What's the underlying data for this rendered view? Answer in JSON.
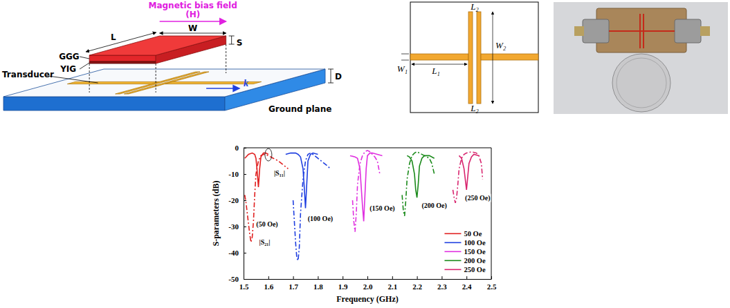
{
  "schematic": {
    "bias_field": "Magnetic bias field",
    "bias_symbol": "(H)",
    "L": "L",
    "W": "W",
    "S": "S",
    "D": "D",
    "ggg": "GGG",
    "yig": "YIG",
    "transducer": "Transducer",
    "k": "k",
    "ground": "Ground plane"
  },
  "layout": {
    "L2_top": "L₂",
    "L2_bottom": "L₂",
    "W2": "W₂",
    "W1": "W₁",
    "L1": "L₁"
  },
  "chart_data": {
    "type": "line",
    "xlabel": "Frequency (GHz)",
    "ylabel": "S-parameters (dB)",
    "xlim": [
      1.5,
      2.5
    ],
    "ylim": [
      -50,
      0
    ],
    "xticks": [
      1.5,
      1.6,
      1.7,
      1.8,
      1.9,
      {
        "value": 2,
        "label": "2.0"
      },
      2.1,
      2.2,
      2.3,
      2.4,
      2.5
    ],
    "yticks": [
      -50,
      -40,
      -30,
      -20,
      -10,
      0
    ],
    "grid": false,
    "legend": "lower right",
    "series": [
      {
        "name": "50 Oe",
        "color": "#e02020",
        "line_style": "solid",
        "x": [
          1.505,
          1.52,
          1.535,
          1.545,
          1.55,
          1.555,
          1.56,
          1.565,
          1.57,
          1.58,
          1.59,
          1.6
        ],
        "values": [
          -4,
          -2.5,
          -2,
          -2.5,
          -4,
          -9,
          -15,
          -8,
          -3.5,
          -2,
          -2,
          -2.5
        ]
      },
      {
        "color": "#e02020",
        "line_style": "dashdot",
        "x": [
          1.505,
          1.51,
          1.515,
          1.52,
          1.525,
          1.53,
          1.535,
          1.54,
          1.545,
          1.55,
          1.56,
          1.57,
          1.58,
          1.6,
          1.62,
          1.64,
          1.66,
          1.68
        ],
        "values": [
          -18,
          -21,
          -25,
          -29,
          -33,
          -36,
          -34,
          -28,
          -18,
          -10,
          -5,
          -3,
          -2.5,
          -3,
          -4,
          -5,
          -6.5,
          -8
        ]
      },
      {
        "name": "100 Oe",
        "color": "#1f3fe0",
        "line_style": "solid",
        "x": [
          1.67,
          1.69,
          1.71,
          1.72,
          1.73,
          1.74,
          1.745,
          1.75,
          1.755,
          1.76,
          1.77,
          1.78,
          1.8
        ],
        "values": [
          -2.5,
          -2,
          -2,
          -2.5,
          -3.5,
          -8,
          -15,
          -23,
          -14,
          -5,
          -2.5,
          -2,
          -2.5
        ]
      },
      {
        "color": "#1f3fe0",
        "line_style": "dashdot",
        "x": [
          1.7,
          1.705,
          1.71,
          1.715,
          1.72,
          1.725,
          1.73,
          1.74,
          1.75,
          1.76,
          1.77,
          1.78,
          1.8,
          1.82,
          1.84,
          1.85
        ],
        "values": [
          -20,
          -28,
          -36,
          -42,
          -43,
          -38,
          -25,
          -12,
          -5,
          -2.5,
          -2,
          -2.5,
          -4,
          -5.5,
          -7,
          -8
        ]
      },
      {
        "name": "150 Oe",
        "color": "#e030e0",
        "line_style": "solid",
        "x": [
          1.93,
          1.95,
          1.96,
          1.97,
          1.975,
          1.98,
          1.985,
          1.99,
          1.995,
          2.0,
          2.01,
          2.02,
          2.04,
          2.06
        ],
        "values": [
          -3,
          -3.5,
          -4,
          -8,
          -15,
          -22,
          -28,
          -18,
          -8,
          -3,
          -2,
          -2,
          -2.5,
          -3
        ]
      },
      {
        "color": "#e030e0",
        "line_style": "dashdot",
        "x": [
          1.94,
          1.945,
          1.95,
          1.955,
          1.96,
          1.97,
          1.98,
          1.99,
          2.0,
          2.01,
          2.02,
          2.03,
          2.04,
          2.05
        ],
        "values": [
          -20,
          -28,
          -32,
          -25,
          -14,
          -6,
          -3,
          -1.5,
          -1,
          -1.5,
          -2.5,
          -3.5,
          -5,
          -10
        ]
      },
      {
        "name": "200 Oe",
        "color": "#1a8a1a",
        "line_style": "solid",
        "x": [
          2.16,
          2.17,
          2.18,
          2.19,
          2.195,
          2.2,
          2.205,
          2.21,
          2.22,
          2.23,
          2.25,
          2.27
        ],
        "values": [
          -3,
          -3.5,
          -5,
          -10,
          -16,
          -19,
          -14,
          -7,
          -4,
          -3,
          -3,
          -4
        ]
      },
      {
        "color": "#1a8a1a",
        "line_style": "dashdot",
        "x": [
          2.14,
          2.145,
          2.15,
          2.155,
          2.16,
          2.17,
          2.18,
          2.19,
          2.2,
          2.21,
          2.23,
          2.25,
          2.26,
          2.27
        ],
        "values": [
          -18,
          -24,
          -26,
          -20,
          -12,
          -6,
          -3,
          -2,
          -1.5,
          -2,
          -3,
          -4,
          -6,
          -10
        ]
      },
      {
        "name": "250 Oe",
        "color": "#d8246e",
        "line_style": "solid",
        "x": [
          2.37,
          2.38,
          2.39,
          2.395,
          2.4,
          2.405,
          2.41,
          2.42,
          2.43,
          2.45
        ],
        "values": [
          -3,
          -4,
          -8,
          -12,
          -16,
          -11,
          -6,
          -3.5,
          -2.5,
          -3
        ]
      },
      {
        "color": "#d8246e",
        "line_style": "dashdot",
        "x": [
          2.345,
          2.35,
          2.355,
          2.36,
          2.365,
          2.37,
          2.38,
          2.39,
          2.4,
          2.42,
          2.44,
          2.45,
          2.46,
          2.465
        ],
        "values": [
          -16,
          -19,
          -21,
          -19,
          -14,
          -8,
          -4,
          -2.5,
          -2,
          -1.5,
          -2,
          -3,
          -6,
          -12
        ]
      }
    ],
    "annotations": [
      {
        "text": "|S₁₁|",
        "x": 1.645,
        "y": -9.5
      },
      {
        "text": "(50 Oe)",
        "x": 1.595,
        "y": -29
      },
      {
        "text": "|S₂₁|",
        "x": 1.585,
        "y": -36
      },
      {
        "text": "(100 Oe)",
        "x": 1.81,
        "y": -27
      },
      {
        "text": "(150 Oe)",
        "x": 2.06,
        "y": -23
      },
      {
        "text": "(200 Oe)",
        "x": 2.27,
        "y": -22
      },
      {
        "text": "(250 Oe)",
        "x": 2.445,
        "y": -19
      }
    ]
  }
}
